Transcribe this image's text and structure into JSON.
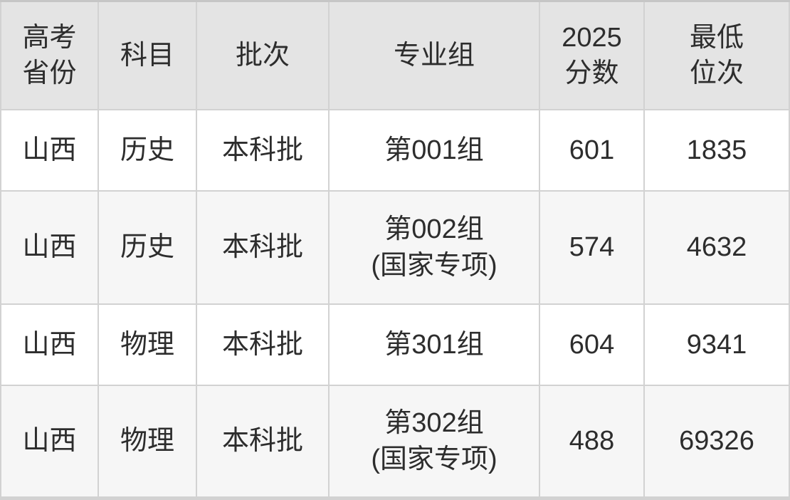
{
  "table": {
    "headers": [
      "高考\n省份",
      "科目",
      "批次",
      "专业组",
      "2025\n分数",
      "最低\n位次"
    ],
    "rows": [
      [
        "山西",
        "历史",
        "本科批",
        "第001组",
        "601",
        "1835"
      ],
      [
        "山西",
        "历史",
        "本科批",
        "第002组\n(国家专项)",
        "574",
        "4632"
      ],
      [
        "山西",
        "物理",
        "本科批",
        "第301组",
        "604",
        "9341"
      ],
      [
        "山西",
        "物理",
        "本科批",
        "第302组\n(国家专项)",
        "488",
        "69326"
      ]
    ]
  },
  "colors": {
    "header_bg": "#e4e4e4",
    "row_bg": "#ffffff",
    "row_alt_bg": "#f6f6f6",
    "gridline": "#d2d2d2",
    "top_border": "#c6c6c6",
    "text": "#2d2d2d"
  },
  "chart_data": {
    "type": "table",
    "title": "",
    "columns": [
      "高考省份",
      "科目",
      "批次",
      "专业组",
      "2025分数",
      "最低位次"
    ],
    "rows": [
      [
        "山西",
        "历史",
        "本科批",
        "第001组",
        601,
        1835
      ],
      [
        "山西",
        "历史",
        "本科批",
        "第002组(国家专项)",
        574,
        4632
      ],
      [
        "山西",
        "物理",
        "本科批",
        "第301组",
        604,
        9341
      ],
      [
        "山西",
        "物理",
        "本科批",
        "第302组(国家专项)",
        488,
        69326
      ]
    ],
    "layout": {
      "header_background": "#e4e4e4",
      "zebra_striping": true,
      "grid": true
    }
  }
}
